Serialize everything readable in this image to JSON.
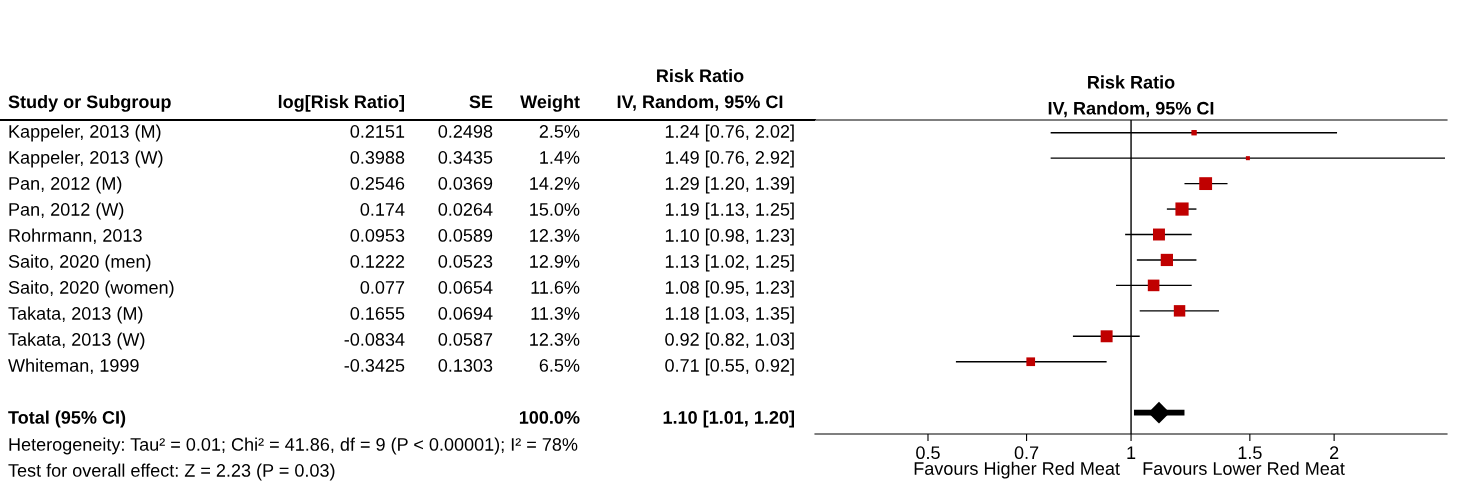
{
  "chart_data": [
    {
      "type": "other",
      "categories": [
        "Study or Subgroup",
        "log[Risk Ratio]",
        "SE",
        "Weight",
        "Risk Ratio\nIV, Random, 95% CI"
      ],
      "y_categories": [
        "Kappeler, 2013 (M)",
        "Kappeler, 2013 (W)",
        "Pan, 2012 (M)",
        "Pan, 2012 (W)",
        "Rohrmann, 2013",
        "Saito, 2020 (men)",
        "Saito, 2020 (women)",
        "Takata, 2013 (M)",
        "Takata, 2013 (W)",
        "Whiteman, 1999",
        null,
        "Total (95% CI)"
      ],
      "cell_labels": [
        [
          "0.2151",
          "0.2498",
          "2.5%",
          "1.24 [0.76, 2.02]"
        ],
        [
          "0.3988",
          "0.3435",
          "1.4%",
          "1.49 [0.76, 2.92]"
        ],
        [
          "0.2546",
          "0.0369",
          "14.2%",
          "1.29 [1.20, 1.39]"
        ],
        [
          "0.174",
          "0.0264",
          "15.0%",
          "1.19 [1.13, 1.25]"
        ],
        [
          "0.0953",
          "0.0589",
          "12.3%",
          "1.10 [0.98, 1.23]"
        ],
        [
          "0.1222",
          "0.0523",
          "12.9%",
          "1.13 [1.02, 1.25]"
        ],
        [
          "0.077",
          "0.0654",
          "11.6%",
          "1.08 [0.95, 1.23]"
        ],
        [
          "0.1655",
          "0.0694",
          "11.3%",
          "1.18 [1.03, 1.35]"
        ],
        [
          "-0.0834",
          "0.0587",
          "12.3%",
          "0.92 [0.82, 1.03]"
        ],
        [
          "-0.3425",
          "0.1303",
          "6.5%",
          "0.71 [0.55, 0.92]"
        ],
        [
          null,
          null,
          null,
          null
        ],
        [
          null,
          null,
          "100.0%",
          "1.10 [1.01, 1.20]"
        ]
      ],
      "annotations": [
        "Heterogeneity: Tau² = 0.01; Chi² = 41.86, df = 9 (P < 0.00001); I² = 78%",
        "Test for overall effect: Z = 2.23 (P = 0.03)"
      ]
    },
    {
      "type": "scatter",
      "title": "Risk Ratio\nIV, Random, 95% CI",
      "orientation": "horizontal",
      "log": "x",
      "tick_labels": "x",
      "categories": [
        null,
        null,
        null,
        null,
        null,
        null,
        null,
        null,
        null,
        null,
        null,
        null
      ],
      "series": [
        {
          "color": "#c00000",
          "marker": "square",
          "values": [
            1.24,
            1.49,
            1.29,
            1.19,
            1.1,
            1.13,
            1.08,
            1.18,
            0.92,
            0.71,
            null,
            null
          ],
          "errors": [
            [
              0.76,
              2.02
            ],
            [
              0.76,
              2.92
            ],
            [
              1.2,
              1.39
            ],
            [
              1.13,
              1.25
            ],
            [
              0.98,
              1.23
            ],
            [
              1.02,
              1.25
            ],
            [
              0.95,
              1.23
            ],
            [
              1.03,
              1.35
            ],
            [
              0.82,
              1.03
            ],
            [
              0.55,
              0.92
            ],
            null,
            null
          ],
          "sizes": [
            0.167,
            0.093,
            0.947,
            1,
            0.82,
            0.86,
            0.773,
            0.753,
            0.82,
            0.433,
            null,
            null
          ]
        },
        {
          "color": "#000000",
          "marker": "diamond",
          "values": [
            null,
            null,
            null,
            null,
            null,
            null,
            null,
            null,
            null,
            null,
            null,
            1.1
          ],
          "errors": [
            null,
            null,
            null,
            null,
            null,
            null,
            null,
            null,
            null,
            null,
            null,
            [
              1.01,
              1.2
            ]
          ]
        }
      ],
      "xlim": [
        0.34,
        2.94
      ],
      "xticks": [
        0.5,
        0.7,
        1,
        1.5,
        2
      ],
      "ref_lines": [
        {
          "axis": "x",
          "value": 1,
          "color": "#000000"
        }
      ],
      "annotations": [
        "Favours Higher Red Meat",
        "Favours Lower Red Meat"
      ]
    }
  ]
}
